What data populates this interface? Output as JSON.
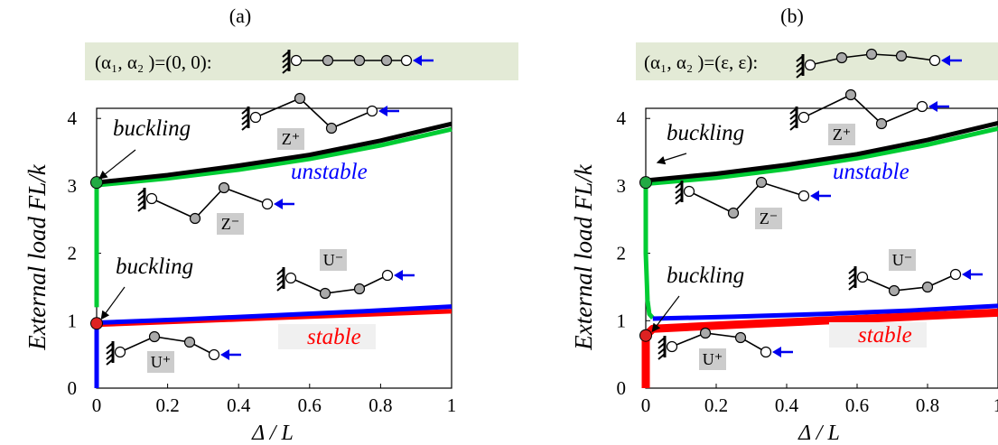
{
  "chart_data": [
    {
      "panel": "(a)",
      "type": "line",
      "config_label": "(α₁, α₂ )=(0, 0):",
      "xlabel": "Δ / L",
      "ylabel": "External load  FL/k",
      "xlim": [
        0,
        1
      ],
      "ylim": [
        0,
        4.15
      ],
      "x_ticks": [
        "0",
        "0.2",
        "0.4",
        "0.6",
        "0.8",
        "1"
      ],
      "y_ticks": [
        "0",
        "1",
        "2",
        "3",
        "4"
      ],
      "series": [
        {
          "color": "#0000ff",
          "x": [
            0,
            0
          ],
          "y": [
            0,
            0.96
          ]
        },
        {
          "color": "#00cc33",
          "x": [
            0,
            0
          ],
          "y": [
            1.2,
            3.05
          ]
        },
        {
          "color": "#00cc33",
          "x": [
            0,
            0.2,
            0.4,
            0.6,
            0.8,
            1.0
          ],
          "y": [
            3.01,
            3.11,
            3.24,
            3.4,
            3.6,
            3.84
          ]
        },
        {
          "color": "#000000",
          "x": [
            0,
            0.2,
            0.4,
            0.6,
            0.8,
            1.0
          ],
          "y": [
            3.05,
            3.16,
            3.3,
            3.46,
            3.67,
            3.92
          ]
        },
        {
          "color": "#ff0000",
          "x": [
            0,
            0.25,
            0.5,
            0.75,
            1.0
          ],
          "y": [
            0.94,
            0.99,
            1.04,
            1.09,
            1.14
          ]
        },
        {
          "color": "#0000ff",
          "x": [
            0,
            0.25,
            0.5,
            0.75,
            1.0
          ],
          "y": [
            0.97,
            1.02,
            1.08,
            1.14,
            1.21
          ]
        }
      ],
      "points": [
        {
          "x": 0,
          "y": 3.05,
          "color": "#22aa44"
        },
        {
          "x": 0,
          "y": 0.96,
          "color": "#dd2222"
        }
      ],
      "annotations": {
        "buckling_top": "buckling",
        "buckling_bottom": "buckling",
        "unstable": "unstable",
        "stable": "stable",
        "z_plus": "Z⁺",
        "z_minus": "Z⁻",
        "u_minus": "U⁻",
        "u_plus": "U⁺"
      }
    },
    {
      "panel": "(b)",
      "type": "line",
      "config_label": "(α₁, α₂ )=(ε, ε):",
      "xlabel": "Δ / L",
      "ylabel": "External load  FL/k",
      "xlim": [
        0,
        1
      ],
      "ylim": [
        0,
        4.15
      ],
      "x_ticks": [
        "0",
        "0.2",
        "0.4",
        "0.6",
        "0.8",
        "1"
      ],
      "y_ticks": [
        "0",
        "1",
        "2",
        "3",
        "4"
      ],
      "series": [
        {
          "color": "#ff0000",
          "x": [
            0,
            0
          ],
          "y": [
            0,
            0.78
          ]
        },
        {
          "color": "#00cc33",
          "x": [
            0,
            0,
            0.005,
            0.01,
            0.02
          ],
          "y": [
            3.05,
            2.0,
            1.3,
            1.1,
            1.04
          ]
        },
        {
          "color": "#0000ff",
          "x": [
            0.02,
            0.25,
            0.5,
            0.75,
            1.0
          ],
          "y": [
            1.03,
            1.06,
            1.1,
            1.15,
            1.22
          ]
        },
        {
          "color": "#ff0000",
          "x": [
            0,
            0.02,
            0.25,
            0.5,
            0.75,
            1.0
          ],
          "y": [
            0.78,
            0.88,
            0.94,
            1.0,
            1.06,
            1.12
          ]
        },
        {
          "color": "#00cc33",
          "x": [
            0,
            0.2,
            0.4,
            0.6,
            0.8,
            1.0
          ],
          "y": [
            3.03,
            3.12,
            3.25,
            3.41,
            3.61,
            3.85
          ]
        },
        {
          "color": "#000000",
          "x": [
            0,
            0.2,
            0.4,
            0.6,
            0.8,
            1.0
          ],
          "y": [
            3.08,
            3.18,
            3.31,
            3.47,
            3.68,
            3.93
          ]
        }
      ],
      "points": [
        {
          "x": 0,
          "y": 3.05,
          "color": "#22aa44"
        },
        {
          "x": 0,
          "y": 0.78,
          "color": "#dd2222"
        }
      ],
      "annotations": {
        "buckling_top": "buckling",
        "buckling_bottom": "buckling",
        "unstable": "unstable",
        "stable": "stable",
        "z_plus": "Z⁺",
        "z_minus": "Z⁻",
        "u_minus": "U⁻",
        "u_plus": "U⁺"
      }
    }
  ]
}
